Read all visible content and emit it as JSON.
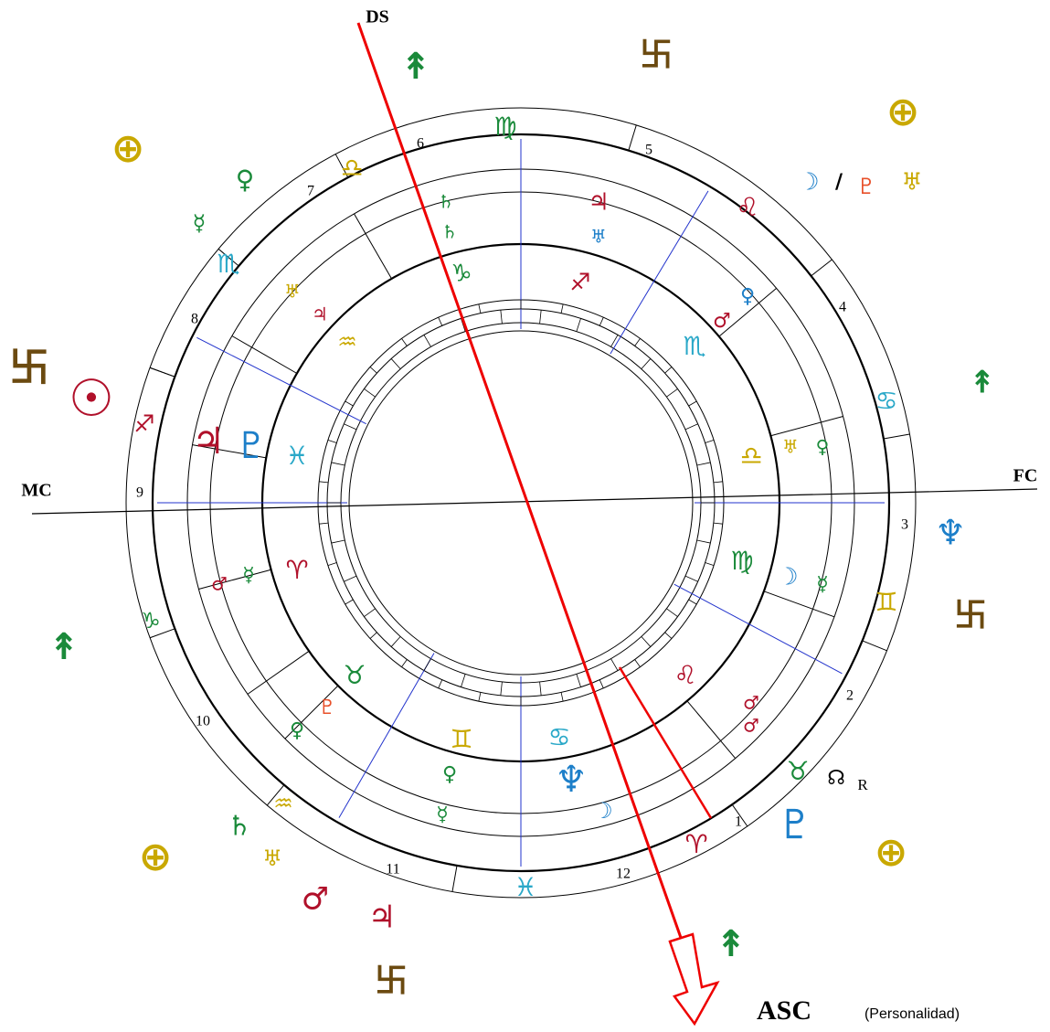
{
  "axes": {
    "ds": "DS",
    "mc": "MC",
    "fc": "FC",
    "asc": "ASC",
    "asc_note": "(Personalidad)"
  },
  "houses": [
    "1",
    "2",
    "3",
    "4",
    "5",
    "6",
    "7",
    "8",
    "9",
    "10",
    "11",
    "12"
  ],
  "retro": "R",
  "glyphs": [
    "↟",
    "⊕",
    "⊕",
    "⊕",
    "⊕",
    "卐",
    "卐",
    "卐",
    "卐",
    "☉",
    "☽",
    "/",
    "♇",
    "♅",
    "↟",
    "↟",
    "↟",
    "♆",
    "♇",
    "☊",
    "♄",
    "♅",
    "♂",
    "♃",
    "♍",
    "♌",
    "♋",
    "♊",
    "♉",
    "♈",
    "♓",
    "♑",
    "♐",
    "♏",
    "♎",
    "♀",
    "☿",
    "♄",
    "♄",
    "♃",
    "♅",
    "♀",
    "♂",
    "♅",
    "♀",
    "♑",
    "♐",
    "♏",
    "♎",
    "♍",
    "♌",
    "♋",
    "♊",
    "♉",
    "♈",
    "♓",
    "♒",
    "♃",
    "♇",
    "☽",
    "☿",
    "♂",
    "♂",
    "♆",
    "☽",
    "♀",
    "☿",
    "♒",
    "♀",
    "♇",
    "♂",
    "☿",
    "♅",
    "♃",
    "♑"
  ]
}
